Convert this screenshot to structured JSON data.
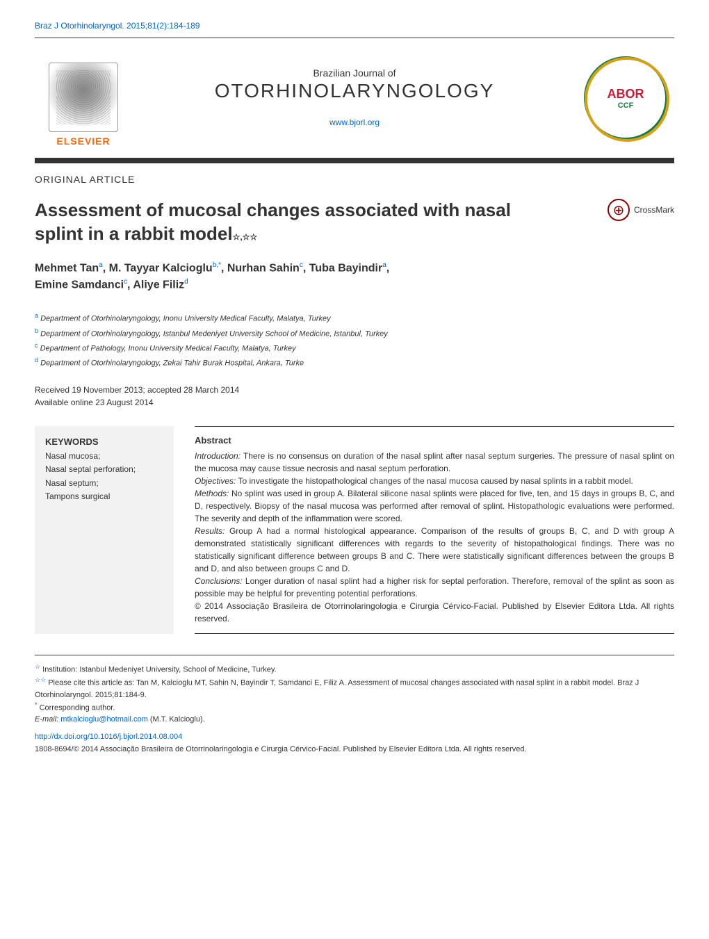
{
  "header": {
    "citation_link": "Braz J Otorhinolaryngol. 2015;81(2):184-189",
    "journal_subtitle": "Brazilian Journal of",
    "journal_title": "OTORHINOLARYNGOLOGY",
    "journal_url": "www.bjorl.org",
    "elsevier_label": "ELSEVIER",
    "abor_label": "ABOR",
    "abor_sublabel": "CCF"
  },
  "article": {
    "type": "ORIGINAL ARTICLE",
    "title": "Assessment of mucosal changes associated with nasal splint in a rabbit model",
    "title_marks": "☆,☆☆",
    "crossmark_label": "CrossMark"
  },
  "authors": {
    "line1_name1": "Mehmet Tan",
    "line1_sup1": "a",
    "line1_name2": "M. Tayyar Kalcioglu",
    "line1_sup2": "b,*",
    "line1_name3": "Nurhan Sahin",
    "line1_sup3": "c",
    "line1_name4": "Tuba Bayindir",
    "line1_sup4": "a",
    "line2_name1": "Emine Samdanci",
    "line2_sup1": "c",
    "line2_name2": "Aliye Filiz",
    "line2_sup2": "d"
  },
  "affiliations": {
    "a": "Department of Otorhinolaryngology, Inonu University Medical Faculty, Malatya, Turkey",
    "b": "Department of Otorhinolaryngology, Istanbul Medeniyet University School of Medicine, Istanbul, Turkey",
    "c": "Department of Pathology, Inonu University Medical Faculty, Malatya, Turkey",
    "d": "Department of Otorhinolaryngology, Zekai Tahir Burak Hospital, Ankara, Turke"
  },
  "dates": {
    "received": "Received 19 November 2013; accepted 28 March 2014",
    "online": "Available online 23 August 2014"
  },
  "keywords": {
    "heading": "KEYWORDS",
    "items": "Nasal mucosa;\nNasal septal perforation;\nNasal septum;\nTampons surgical"
  },
  "abstract": {
    "heading": "Abstract",
    "intro_label": "Introduction:",
    "intro_text": " There is no consensus on duration of the nasal splint after nasal septum surgeries. The pressure of nasal splint on the mucosa may cause tissue necrosis and nasal septum perforation.",
    "obj_label": "Objectives:",
    "obj_text": " To investigate the histopathological changes of the nasal mucosa caused by nasal splints in a rabbit model.",
    "methods_label": "Methods:",
    "methods_text": " No splint was used in group A. Bilateral silicone nasal splints were placed for five, ten, and 15 days in groups B, C, and D, respectively. Biopsy of the nasal mucosa was performed after removal of splint. Histopathologic evaluations were performed. The severity and depth of the inflammation were scored.",
    "results_label": "Results:",
    "results_text": " Group A had a normal histological appearance. Comparison of the results of groups B, C, and D with group A demonstrated statistically significant differences with regards to the severity of histopathological findings. There was no statistically significant difference between groups B and C. There were statistically significant differences between the groups B and D, and also between groups C and D.",
    "conclusions_label": "Conclusions:",
    "conclusions_text": " Longer duration of nasal splint had a higher risk for septal perforation. Therefore, removal of the splint as soon as possible may be helpful for preventing potential perforations.",
    "copyright_text": "© 2014 Associação Brasileira de Otorrinolaringologia e Cirurgia Cérvico-Facial. Published by Elsevier Editora Ltda. All rights reserved."
  },
  "footnotes": {
    "institution_mark": "☆",
    "institution_text": " Institution: Istanbul Medeniyet University, School of Medicine, Turkey.",
    "cite_mark": "☆☆",
    "cite_text": " Please cite this article as: Tan M, Kalcioglu MT, Sahin N, Bayindir T, Samdanci E, Filiz A. Assessment of mucosal changes associated with nasal splint in a rabbit model. Braz J Otorhinolaryngol. 2015;81:184-9.",
    "corr_mark": "*",
    "corr_text": " Corresponding author.",
    "email_label": "E-mail: ",
    "email_value": "mtkalcioglu@hotmail.com",
    "email_name": " (M.T. Kalcioglu).",
    "doi": "http://dx.doi.org/10.1016/j.bjorl.2014.08.004",
    "issn_copyright": "1808-8694/© 2014 Associação Brasileira de Otorrinolaringologia e Cirurgia Cérvico-Facial. Published by Elsevier Editora Ltda. All rights reserved."
  },
  "colors": {
    "link": "#0066cc",
    "text": "#333333",
    "elsevier_orange": "#ff6600",
    "abor_green": "#1a7a3a",
    "abor_red": "#c41e3a",
    "abor_gold": "#d4a017",
    "crossmark_red": "#8B0000",
    "keywords_bg": "#f2f2f2"
  },
  "typography": {
    "body_font": "Arial, Helvetica, sans-serif",
    "title_fontsize": 26,
    "journal_title_fontsize": 28,
    "authors_fontsize": 16,
    "abstract_fontsize": 12,
    "footnote_fontsize": 11
  }
}
